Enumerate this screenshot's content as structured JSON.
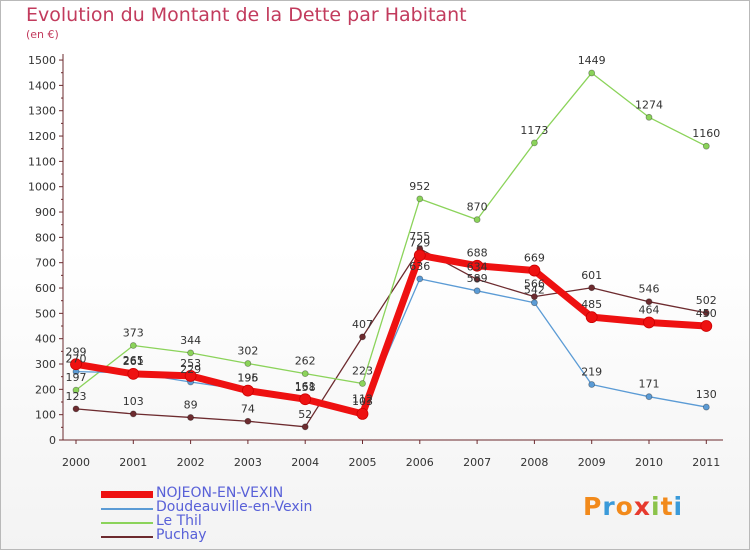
{
  "title": "Evolution du Montant de la Dette par Habitant",
  "subtitle": "(en €)",
  "brand": {
    "letters": [
      "P",
      "r",
      "o",
      "x",
      "i",
      "t",
      "i"
    ],
    "colors": [
      "#f28a1b",
      "#3a9ad9",
      "#f28a1b",
      "#e73a2e",
      "#8bc34a",
      "#f28a1b",
      "#3a9ad9"
    ]
  },
  "chart_data": {
    "type": "line",
    "title": "Evolution du Montant de la Dette par Habitant",
    "ylabel": "(en €)",
    "categories": [
      "2000",
      "2001",
      "2002",
      "2003",
      "2004",
      "2005",
      "2006",
      "2007",
      "2008",
      "2009",
      "2010",
      "2011"
    ],
    "yticks": [
      "0",
      "100",
      "200",
      "300",
      "400",
      "500",
      "600",
      "700",
      "800",
      "900",
      "1000",
      "1100",
      "1200",
      "1300",
      "1400",
      "1500"
    ],
    "ylim": [
      0,
      1500
    ],
    "grid": false,
    "legend": "bottom-left",
    "series": [
      {
        "name": "NOJEON-EN-VEXIN",
        "color": "#ee1111",
        "values": [
          299,
          261,
          253,
          195,
          161,
          103,
          729,
          688,
          669,
          485,
          464,
          450
        ]
      },
      {
        "name": "Doudeauville-en-Vexin",
        "color": "#5b9bd5",
        "values": [
          270,
          265,
          229,
          196,
          158,
          112,
          636,
          589,
          542,
          219,
          171,
          130
        ]
      },
      {
        "name": "Le Thil",
        "color": "#8bd35a",
        "values": [
          197,
          373,
          344,
          302,
          262,
          223,
          952,
          870,
          1173,
          1449,
          1274,
          1160
        ]
      },
      {
        "name": "Puchay",
        "color": "#6d2b2f",
        "values": [
          123,
          103,
          89,
          74,
          52,
          407,
          755,
          634,
          566,
          601,
          546,
          502
        ]
      }
    ]
  }
}
